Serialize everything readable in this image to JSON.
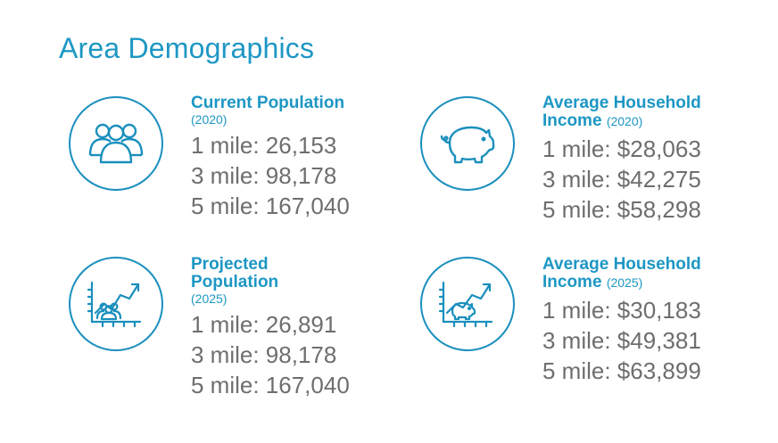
{
  "title": "Area Demographics",
  "cards": [
    {
      "heading": "Current Population",
      "year": "(2020)",
      "rows": [
        "1 mile: 26,153",
        "3 mile: 98,178",
        "5 mile: 167,040"
      ],
      "icon": "people-group-icon"
    },
    {
      "heading_line1": "Average Household",
      "heading_line2": "Income",
      "year": "(2020)",
      "rows": [
        "1 mile: $28,063",
        "3 mile: $42,275",
        "5 mile: $58,298"
      ],
      "icon": "piggy-bank-icon"
    },
    {
      "heading": "Projected Population",
      "year": "(2025)",
      "rows": [
        "1 mile: 26,891",
        "3 mile: 98,178",
        "5 mile: 167,040"
      ],
      "icon": "population-growth-chart-icon"
    },
    {
      "heading_line1": "Average Household",
      "heading_line2": "Income",
      "year": "(2025)",
      "rows": [
        "1 mile: $30,183",
        "3 mile: $49,381",
        "5 mile: $63,899"
      ],
      "icon": "income-growth-chart-icon"
    }
  ],
  "colors": {
    "accent": "#1d97c4",
    "body_text": "#6e6e6e"
  }
}
